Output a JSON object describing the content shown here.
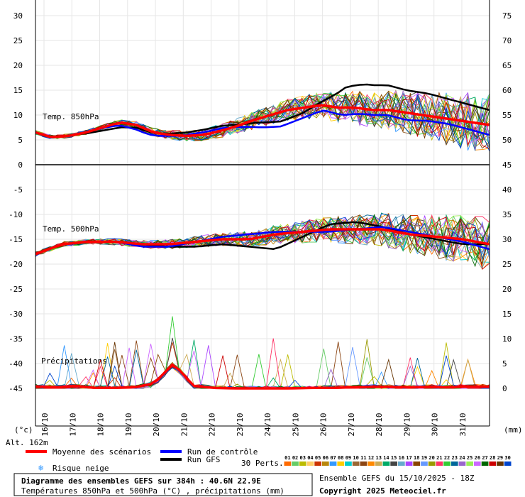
{
  "chart_data": {
    "type": "line",
    "x_dates": [
      "16/10",
      "17/10",
      "18/10",
      "19/10",
      "20/10",
      "21/10",
      "22/10",
      "23/10",
      "24/10",
      "25/10",
      "26/10",
      "27/10",
      "28/10",
      "29/10",
      "30/10",
      "31/10"
    ],
    "left_ticks": [
      30,
      25,
      20,
      15,
      10,
      5,
      0,
      -5,
      -10,
      -15,
      -20,
      -25,
      -30,
      -35,
      -40,
      -45
    ],
    "right_ticks": [
      75,
      70,
      65,
      60,
      55,
      50,
      45,
      40,
      35,
      30,
      25,
      20,
      15,
      10,
      5,
      0
    ],
    "left_unit": "(°c)",
    "right_unit": "(mm)",
    "altitude": "Alt. 162m",
    "panel_labels": {
      "t850": "Temp. 850hPa",
      "t500": "Temp. 500hPa",
      "precip": "Précipitations"
    },
    "steps_per_day": 4,
    "t850": {
      "mean": [
        6.5,
        5.5,
        5.8,
        6.5,
        7.5,
        8.5,
        8,
        6.5,
        6,
        5.8,
        6,
        6.8,
        7.8,
        9,
        10,
        11,
        11.5,
        12,
        11.5,
        11.5,
        11,
        11,
        10.5,
        10,
        9.5,
        9,
        8.5,
        8
      ]
    },
    "t500": {
      "mean": [
        -18,
        -16,
        -15.5,
        -15.5,
        -16,
        -16,
        -15.5,
        -15,
        -15,
        -14,
        -13.5,
        -13,
        -13,
        -13,
        -14,
        -14.5,
        -15,
        -16
      ]
    },
    "precip": {
      "mean": [
        0.4,
        0.2,
        0.5,
        0.1,
        0.1,
        0.2,
        1,
        5,
        0.5,
        0.1,
        0,
        0,
        0,
        0,
        0.1,
        0.1,
        0.2,
        0.3,
        0.3,
        0.2,
        0.3,
        0.2,
        0.4,
        0.3
      ]
    },
    "legend": {
      "mean": "Moyenne des scénarios",
      "control": "Run de contrôle",
      "gfs": "Run GFS",
      "snow": "Risque neige",
      "perts": "30 Perts."
    },
    "colors": {
      "mean": "#ff0000",
      "control": "#0000ff",
      "gfs": "#000000"
    },
    "pert_numbers": [
      "01",
      "02",
      "03",
      "04",
      "05",
      "06",
      "07",
      "08",
      "09",
      "10",
      "11",
      "12",
      "13",
      "14",
      "15",
      "16",
      "17",
      "18",
      "19",
      "20",
      "21",
      "22",
      "23",
      "24",
      "25",
      "26",
      "27",
      "28",
      "29",
      "30"
    ],
    "pert_colors": [
      "#ff6a00",
      "#66cc66",
      "#bbbb00",
      "#ffcc66",
      "#cc3300",
      "#b8860b",
      "#3399ff",
      "#ffcc00",
      "#00cccc",
      "#996633",
      "#8b4513",
      "#ff8800",
      "#ccaa55",
      "#00aa66",
      "#444444",
      "#66aacc",
      "#aa44ff",
      "#884400",
      "#6699ff",
      "#999900",
      "#ff3366",
      "#33cc33",
      "#006699",
      "#9966cc",
      "#99ee55",
      "#cc66ff",
      "#006600",
      "#cc0000",
      "#663300",
      "#0044cc"
    ],
    "box_title": "Diagramme des ensembles GEFS sur 384h : 40.6N 22.9E",
    "box_subtitle": "Températures 850hPa et 500hPa (°C) , précipitations (mm)",
    "run_info": "Ensemble GEFS du 15/10/2025 - 18Z",
    "copyright": "Copyright 2025 Meteociel.fr"
  }
}
